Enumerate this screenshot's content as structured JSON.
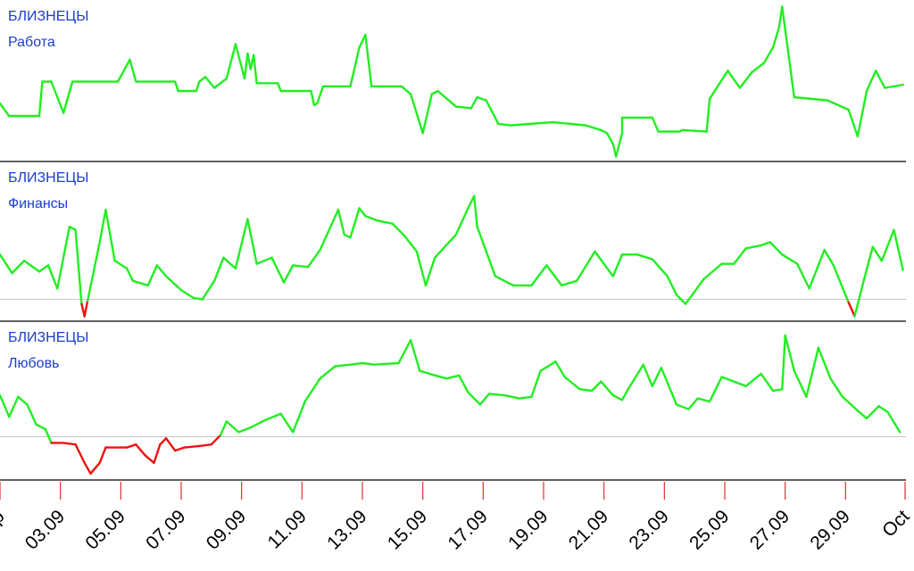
{
  "chart_data": {
    "type": "line",
    "colors": {
      "positive": "#22ee22",
      "negative": "#ee1111",
      "label": "#1a3ccf",
      "axis": "#000000",
      "baseline": "#c8c8c8",
      "tick": "#e03030"
    },
    "x_axis": {
      "domain": [
        "Sep 1",
        "Oct 1"
      ],
      "tick_labels": [
        "Sep",
        "03.09",
        "05.09",
        "07.09",
        "09.09",
        "11.09",
        "13.09",
        "15.09",
        "17.09",
        "19.09",
        "21.09",
        "23.09",
        "25.09",
        "27.09",
        "29.09",
        "Oct"
      ],
      "tick_days": [
        1,
        3,
        5,
        7,
        9,
        11,
        13,
        15,
        17,
        19,
        21,
        23,
        25,
        27,
        29,
        31
      ]
    },
    "panels": [
      {
        "sign": "БЛИЗНЕЦЫ",
        "topic": "Работа",
        "ylim": [
          0,
          100
        ],
        "baseline": null,
        "series": [
          [
            1,
            36
          ],
          [
            1.3,
            28
          ],
          [
            2.3,
            28
          ],
          [
            2.4,
            50
          ],
          [
            2.7,
            50
          ],
          [
            3.1,
            30
          ],
          [
            3.4,
            50
          ],
          [
            3.8,
            50
          ],
          [
            4.9,
            50
          ],
          [
            5.3,
            64
          ],
          [
            5.5,
            50
          ],
          [
            6.8,
            50
          ],
          [
            6.9,
            44
          ],
          [
            7.5,
            44
          ],
          [
            7.6,
            50
          ],
          [
            7.8,
            53
          ],
          [
            8.1,
            46
          ],
          [
            8.5,
            52
          ],
          [
            8.8,
            74
          ],
          [
            9.1,
            52
          ],
          [
            9.2,
            68
          ],
          [
            9.3,
            58
          ],
          [
            9.4,
            67
          ],
          [
            9.5,
            49
          ],
          [
            10.2,
            49
          ],
          [
            10.3,
            44
          ],
          [
            11.3,
            44
          ],
          [
            11.4,
            35
          ],
          [
            11.5,
            36
          ],
          [
            11.7,
            47
          ],
          [
            12.6,
            47
          ],
          [
            12.9,
            72
          ],
          [
            13.1,
            80
          ],
          [
            13.3,
            47
          ],
          [
            14.3,
            47
          ],
          [
            14.6,
            42
          ],
          [
            15.0,
            17
          ],
          [
            15.3,
            42
          ],
          [
            15.5,
            44
          ],
          [
            16.1,
            34
          ],
          [
            16.6,
            33
          ],
          [
            16.8,
            40
          ],
          [
            17.1,
            38
          ],
          [
            17.5,
            23
          ],
          [
            17.9,
            22
          ],
          [
            19.3,
            24
          ],
          [
            20.4,
            22
          ],
          [
            20.9,
            19
          ],
          [
            21.1,
            17
          ],
          [
            21.3,
            10
          ],
          [
            21.4,
            2
          ],
          [
            21.6,
            17
          ],
          [
            21.6,
            27
          ],
          [
            22.6,
            27
          ],
          [
            22.8,
            18
          ],
          [
            23.5,
            18
          ],
          [
            23.6,
            19
          ],
          [
            24.4,
            18
          ],
          [
            24.5,
            39
          ],
          [
            24.8,
            48
          ],
          [
            25.1,
            57
          ],
          [
            25.5,
            46
          ],
          [
            25.9,
            56
          ],
          [
            26.3,
            62
          ],
          [
            26.6,
            72
          ],
          [
            26.8,
            85
          ],
          [
            26.9,
            98
          ],
          [
            27.3,
            40
          ],
          [
            28.4,
            38
          ],
          [
            29.1,
            32
          ],
          [
            29.4,
            15
          ],
          [
            29.7,
            44
          ],
          [
            30.0,
            57
          ],
          [
            30.3,
            46
          ],
          [
            30.9,
            48
          ]
        ]
      },
      {
        "sign": "БЛИЗНЕЦЫ",
        "topic": "Финансы",
        "ylim": [
          0,
          100
        ],
        "baseline": 13,
        "series": [
          [
            1,
            42
          ],
          [
            1.4,
            30
          ],
          [
            1.8,
            38
          ],
          [
            2.3,
            31
          ],
          [
            2.6,
            35
          ],
          [
            2.9,
            20
          ],
          [
            3.3,
            60
          ],
          [
            3.5,
            58
          ],
          [
            3.7,
            10
          ],
          [
            3.8,
            2
          ],
          [
            3.9,
            12
          ],
          [
            4.3,
            50
          ],
          [
            4.5,
            71
          ],
          [
            4.8,
            38
          ],
          [
            5.2,
            33
          ],
          [
            5.4,
            25
          ],
          [
            5.9,
            22
          ],
          [
            6.2,
            35
          ],
          [
            6.5,
            28
          ],
          [
            7.0,
            19
          ],
          [
            7.4,
            14
          ],
          [
            7.7,
            13
          ],
          [
            8.1,
            25
          ],
          [
            8.4,
            40
          ],
          [
            8.8,
            33
          ],
          [
            9.2,
            65
          ],
          [
            9.5,
            36
          ],
          [
            10.0,
            40
          ],
          [
            10.4,
            24
          ],
          [
            10.7,
            35
          ],
          [
            11.2,
            34
          ],
          [
            11.6,
            45
          ],
          [
            12.2,
            71
          ],
          [
            12.4,
            55
          ],
          [
            12.6,
            53
          ],
          [
            12.9,
            72
          ],
          [
            13.1,
            67
          ],
          [
            13.5,
            64
          ],
          [
            14.0,
            62
          ],
          [
            14.4,
            54
          ],
          [
            14.8,
            44
          ],
          [
            15.1,
            22
          ],
          [
            15.4,
            40
          ],
          [
            16.1,
            55
          ],
          [
            16.5,
            72
          ],
          [
            16.7,
            80
          ],
          [
            16.8,
            60
          ],
          [
            17.4,
            28
          ],
          [
            18.0,
            22
          ],
          [
            18.6,
            22
          ],
          [
            19.1,
            35
          ],
          [
            19.6,
            22
          ],
          [
            20.1,
            25
          ],
          [
            20.7,
            44
          ],
          [
            21.3,
            28
          ],
          [
            21.6,
            42
          ],
          [
            22.1,
            42
          ],
          [
            22.6,
            39
          ],
          [
            23.1,
            28
          ],
          [
            23.4,
            16
          ],
          [
            23.7,
            10
          ],
          [
            24.0,
            18
          ],
          [
            24.3,
            26
          ],
          [
            24.9,
            36
          ],
          [
            25.3,
            36
          ],
          [
            25.7,
            46
          ],
          [
            26.2,
            48
          ],
          [
            26.5,
            50
          ],
          [
            26.9,
            42
          ],
          [
            27.4,
            36
          ],
          [
            27.8,
            20
          ],
          [
            28.3,
            45
          ],
          [
            28.6,
            35
          ],
          [
            29.1,
            11
          ],
          [
            29.3,
            2
          ],
          [
            29.6,
            25
          ],
          [
            29.9,
            47
          ],
          [
            30.2,
            38
          ],
          [
            30.6,
            58
          ],
          [
            30.9,
            32
          ]
        ]
      },
      {
        "sign": "БЛИЗНЕЦЫ",
        "topic": "Любовь",
        "ylim": [
          0,
          100
        ],
        "baseline": 27,
        "series": [
          [
            1,
            54
          ],
          [
            1.3,
            40
          ],
          [
            1.6,
            53
          ],
          [
            1.9,
            48
          ],
          [
            2.2,
            35
          ],
          [
            2.5,
            32
          ],
          [
            2.7,
            23
          ],
          [
            3.1,
            23
          ],
          [
            3.5,
            22
          ],
          [
            3.8,
            10
          ],
          [
            4.0,
            3
          ],
          [
            4.3,
            10
          ],
          [
            4.5,
            20
          ],
          [
            4.9,
            20
          ],
          [
            5.2,
            20
          ],
          [
            5.5,
            22
          ],
          [
            5.8,
            15
          ],
          [
            6.1,
            10
          ],
          [
            6.3,
            22
          ],
          [
            6.5,
            26
          ],
          [
            6.8,
            18
          ],
          [
            7.1,
            20
          ],
          [
            7.6,
            21
          ],
          [
            8.0,
            22
          ],
          [
            8.3,
            28
          ],
          [
            8.5,
            37
          ],
          [
            8.9,
            30
          ],
          [
            9.3,
            33
          ],
          [
            9.8,
            38
          ],
          [
            10.3,
            42
          ],
          [
            10.7,
            30
          ],
          [
            11.1,
            50
          ],
          [
            11.6,
            65
          ],
          [
            12.1,
            73
          ],
          [
            12.6,
            74
          ],
          [
            13.0,
            75
          ],
          [
            13.4,
            74
          ],
          [
            14.2,
            75
          ],
          [
            14.6,
            90
          ],
          [
            14.9,
            70
          ],
          [
            15.4,
            67
          ],
          [
            15.8,
            65
          ],
          [
            16.2,
            67
          ],
          [
            16.5,
            56
          ],
          [
            16.9,
            48
          ],
          [
            17.2,
            55
          ],
          [
            17.7,
            54
          ],
          [
            18.2,
            52
          ],
          [
            18.6,
            53
          ],
          [
            18.9,
            70
          ],
          [
            19.4,
            76
          ],
          [
            19.7,
            66
          ],
          [
            20.2,
            58
          ],
          [
            20.6,
            57
          ],
          [
            20.9,
            63
          ],
          [
            21.3,
            54
          ],
          [
            21.6,
            51
          ],
          [
            21.8,
            58
          ],
          [
            22.3,
            74
          ],
          [
            22.6,
            60
          ],
          [
            22.9,
            72
          ],
          [
            23.4,
            48
          ],
          [
            23.8,
            45
          ],
          [
            24.1,
            52
          ],
          [
            24.5,
            50
          ],
          [
            24.9,
            66
          ],
          [
            25.3,
            63
          ],
          [
            25.7,
            60
          ],
          [
            26.2,
            68
          ],
          [
            26.6,
            57
          ],
          [
            26.9,
            58
          ],
          [
            27.0,
            93
          ],
          [
            27.3,
            70
          ],
          [
            27.7,
            53
          ],
          [
            28.1,
            85
          ],
          [
            28.5,
            65
          ],
          [
            28.9,
            53
          ],
          [
            29.4,
            44
          ],
          [
            29.7,
            39
          ],
          [
            30.1,
            47
          ],
          [
            30.4,
            43
          ],
          [
            30.8,
            30
          ]
        ]
      }
    ]
  }
}
